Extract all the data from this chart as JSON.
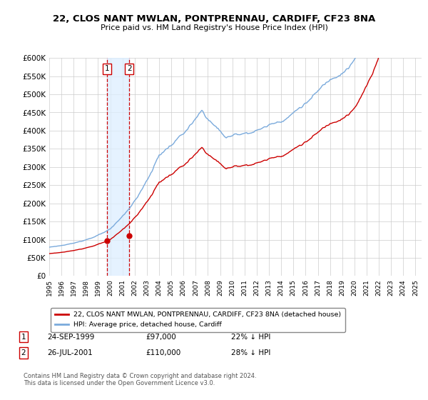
{
  "title": "22, CLOS NANT MWLAN, PONTPRENNAU, CARDIFF, CF23 8NA",
  "subtitle": "Price paid vs. HM Land Registry's House Price Index (HPI)",
  "ylim": [
    0,
    600000
  ],
  "yticks": [
    0,
    50000,
    100000,
    150000,
    200000,
    250000,
    300000,
    350000,
    400000,
    450000,
    500000,
    550000,
    600000
  ],
  "hpi_color": "#7aaadc",
  "price_color": "#cc0000",
  "bg_color": "#ffffff",
  "grid_color": "#cccccc",
  "transaction1": {
    "date": "24-SEP-1999",
    "price": 97000,
    "hpi_pct": "22% ↓ HPI",
    "x": 1999.73
  },
  "transaction2": {
    "date": "26-JUL-2001",
    "price": 110000,
    "hpi_pct": "28% ↓ HPI",
    "x": 2001.56
  },
  "legend_label1": "22, CLOS NANT MWLAN, PONTPRENNAU, CARDIFF, CF23 8NA (detached house)",
  "legend_label2": "HPI: Average price, detached house, Cardiff",
  "footnote": "Contains HM Land Registry data © Crown copyright and database right 2024.\nThis data is licensed under the Open Government Licence v3.0.",
  "xmin": 1995.0,
  "xmax": 2025.5
}
